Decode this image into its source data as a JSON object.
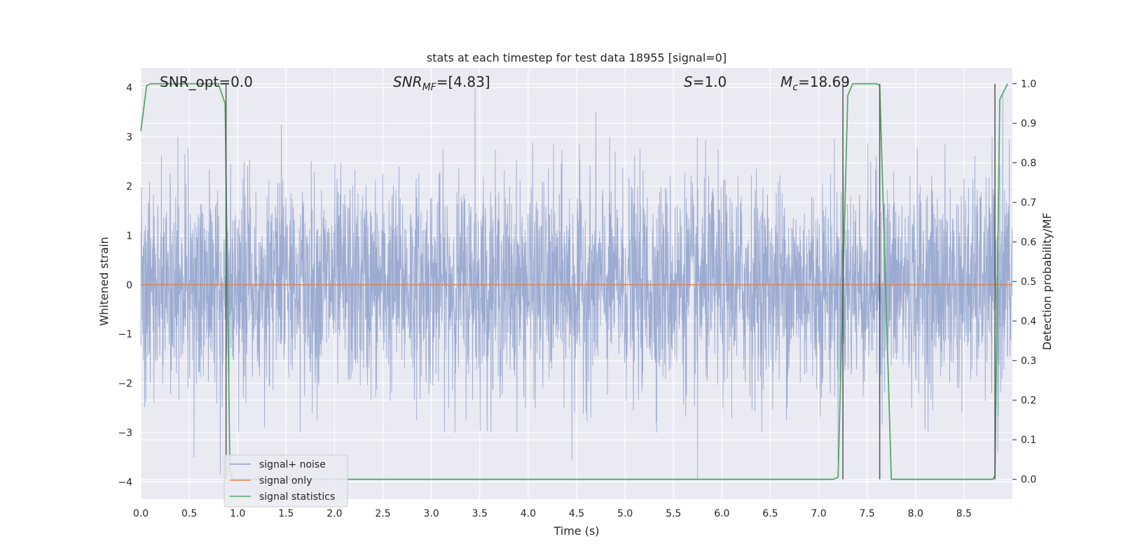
{
  "chart_data": {
    "type": "line",
    "title": "stats at each timestep for test data 18955 [signal=0]",
    "xlabel": "Time (s)",
    "ylabel": "Whitened strain",
    "ylabel_right": "Detection probability/MF",
    "xlim": [
      0.0,
      9.0
    ],
    "ylim": [
      -4.35,
      4.4
    ],
    "ylim_right": [
      -0.05,
      1.04
    ],
    "x_ticks": [
      "0.0",
      "0.5",
      "1.0",
      "1.5",
      "2.0",
      "2.5",
      "3.0",
      "3.5",
      "4.0",
      "4.5",
      "5.0",
      "5.5",
      "6.0",
      "6.5",
      "7.0",
      "7.5",
      "8.0",
      "8.5"
    ],
    "y_ticks": [
      "−4",
      "−3",
      "−2",
      "−1",
      "0",
      "1",
      "2",
      "3",
      "4"
    ],
    "y_ticks_right": [
      "0.0",
      "0.1",
      "0.2",
      "0.3",
      "0.4",
      "0.5",
      "0.6",
      "0.7",
      "0.8",
      "0.9",
      "1.0"
    ],
    "grid": true,
    "legend_position": "lower-left",
    "annotations": {
      "snr_opt": "SNR_opt=0.0",
      "snr_mf_main": "SNR",
      "snr_mf_sub": "MF",
      "snr_mf_value": "=[4.83]",
      "s_main": "S",
      "s_value": "=1.0",
      "mc_main": "M",
      "mc_sub": "c",
      "mc_value": "=18.69"
    },
    "series": [
      {
        "name": "signal+ noise",
        "color": "#8da0cb",
        "kind": "noise",
        "duration": 9.0,
        "noise_sigma": 1.05,
        "noise_extremes": [
          {
            "x": 0.55,
            "y": -3.5
          },
          {
            "x": 0.82,
            "y": 3.35
          },
          {
            "x": 0.82,
            "y": -3.85
          },
          {
            "x": 1.45,
            "y": 3.25
          },
          {
            "x": 3.45,
            "y": 4.0
          },
          {
            "x": 4.45,
            "y": -3.55
          },
          {
            "x": 4.7,
            "y": 3.5
          },
          {
            "x": 5.75,
            "y": -3.95
          },
          {
            "x": 7.2,
            "y": -3.6
          },
          {
            "x": 8.9,
            "y": 3.85
          },
          {
            "x": 8.85,
            "y": -3.4
          }
        ]
      },
      {
        "name": "signal only",
        "color": "#dd8452",
        "kind": "flat",
        "value": 0.0
      },
      {
        "name": "signal statistics",
        "color": "#55a868",
        "kind": "step",
        "axis": "right",
        "x": [
          0.0,
          0.06,
          0.1,
          0.8,
          0.87,
          0.92,
          0.95,
          7.15,
          7.2,
          7.3,
          7.35,
          7.6,
          7.63,
          7.75,
          7.8,
          8.8,
          8.82,
          8.87,
          8.95
        ],
        "y": [
          0.88,
          0.995,
          1.0,
          1.0,
          0.95,
          0.02,
          0.0,
          0.0,
          0.005,
          0.97,
          1.0,
          1.0,
          0.995,
          0.0,
          0.0,
          0.0,
          0.01,
          0.96,
          1.0
        ]
      }
    ],
    "vertical_markers": {
      "color": "#555555",
      "x": [
        0.88,
        7.25,
        7.63,
        8.82
      ]
    }
  }
}
